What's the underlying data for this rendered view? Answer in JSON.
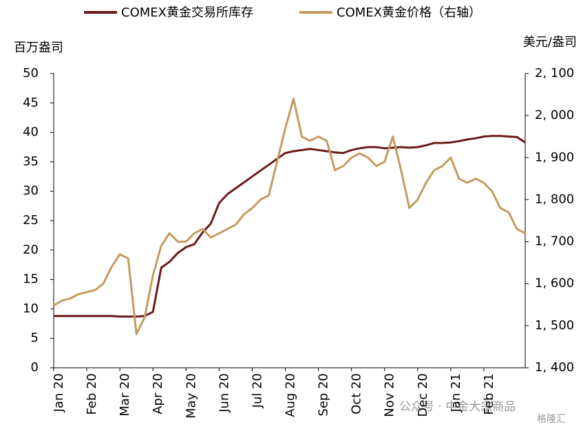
{
  "chart_data": {
    "type": "line",
    "y_label": "百万盎司",
    "y2_label": "美元/盎司",
    "categories": [
      "Jan 20",
      null,
      null,
      null,
      "Feb 20",
      null,
      null,
      null,
      "Mar 20",
      null,
      null,
      null,
      "Apr 20",
      null,
      null,
      null,
      "May 20",
      null,
      null,
      null,
      "Jun 20",
      null,
      null,
      null,
      "Jul 20",
      null,
      null,
      null,
      "Aug 20",
      null,
      null,
      null,
      "Sep 20",
      null,
      null,
      null,
      "Oct 20",
      null,
      null,
      null,
      "Nov 20",
      null,
      null,
      null,
      "Dec 20",
      null,
      null,
      null,
      "Jan 21",
      null,
      null,
      null,
      "Feb 21",
      null,
      null,
      null,
      null,
      null
    ],
    "series": [
      {
        "name": "COMEX黄金交易所库存",
        "color": "#6b1a1a",
        "axis": "y",
        "values": [
          8.8,
          8.8,
          8.8,
          8.8,
          8.8,
          8.8,
          8.8,
          8.8,
          8.7,
          8.7,
          8.7,
          8.8,
          9.5,
          17,
          18,
          19.5,
          20.5,
          21,
          23,
          24.5,
          28,
          29.5,
          30.5,
          31.5,
          32.5,
          33.5,
          34.5,
          35.5,
          36.5,
          36.8,
          37,
          37.2,
          37,
          36.8,
          36.6,
          36.5,
          37,
          37.3,
          37.5,
          37.5,
          37.3,
          37.4,
          37.5,
          37.4,
          37.5,
          37.8,
          38.2,
          38.2,
          38.3,
          38.5,
          38.8,
          39,
          39.3,
          39.4,
          39.4,
          39.3,
          39.2,
          38.3
        ]
      },
      {
        "name": "COMEX黄金价格（右轴）",
        "color": "#c49a5e",
        "axis": "y2",
        "values": [
          1548,
          1560,
          1565,
          1575,
          1580,
          1585,
          1600,
          1640,
          1670,
          1660,
          1480,
          1520,
          1620,
          1690,
          1720,
          1700,
          1700,
          1720,
          1730,
          1710,
          1720,
          1730,
          1740,
          1765,
          1780,
          1800,
          1810,
          1890,
          1970,
          2040,
          1950,
          1940,
          1950,
          1940,
          1870,
          1880,
          1900,
          1910,
          1900,
          1880,
          1890,
          1950,
          1870,
          1780,
          1800,
          1840,
          1870,
          1880,
          1900,
          1850,
          1840,
          1850,
          1840,
          1820,
          1780,
          1770,
          1730,
          1720
        ]
      }
    ],
    "ylim": [
      0,
      50
    ],
    "yticks": [
      0,
      5,
      10,
      15,
      20,
      25,
      30,
      35,
      40,
      45,
      50
    ],
    "y2lim": [
      1400,
      2100
    ],
    "y2ticks": [
      {
        "value": 1400,
        "label": "1, 400"
      },
      {
        "value": 1500,
        "label": "1, 500"
      },
      {
        "value": 1600,
        "label": "1, 600"
      },
      {
        "value": 1700,
        "label": "1, 700"
      },
      {
        "value": 1800,
        "label": "1, 800"
      },
      {
        "value": 1900,
        "label": "1, 900"
      },
      {
        "value": 2000,
        "label": "2, 000"
      },
      {
        "value": 2100,
        "label": "2, 100"
      }
    ],
    "grid": false
  },
  "watermark": [
    "公众号 · 中金大宗商品",
    "格隆汇"
  ]
}
